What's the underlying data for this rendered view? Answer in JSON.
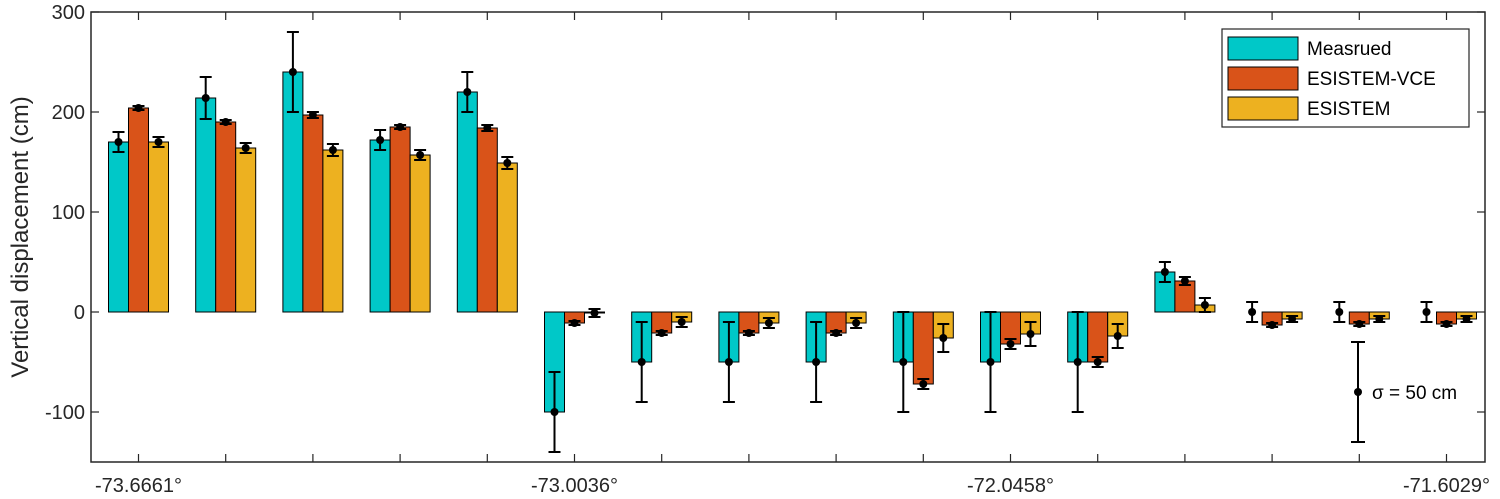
{
  "chart_data": {
    "type": "bar",
    "ylabel": "Vertical displacement (cm)",
    "ylim": [
      -150,
      300
    ],
    "yticks": [
      -100,
      0,
      100,
      200,
      300
    ],
    "xtick_labels": [
      {
        "group": 1,
        "label": "-73.6661°"
      },
      {
        "group": 6,
        "label": "-73.0036°"
      },
      {
        "group": 11,
        "label": "-72.0458°"
      },
      {
        "group": 16,
        "label": "-71.6029°"
      }
    ],
    "groups": 16,
    "series": [
      {
        "name": "Measrued",
        "color": "#00C8C8",
        "values": [
          170,
          214,
          240,
          172,
          220,
          -100,
          -50,
          -50,
          -50,
          -50,
          -50,
          -50,
          40,
          0,
          0,
          0
        ],
        "errors": [
          10,
          21,
          40,
          10,
          20,
          40,
          40,
          40,
          40,
          50,
          50,
          50,
          10,
          10,
          10,
          10
        ]
      },
      {
        "name": "ESISTEM-VCE",
        "color": "#D95319",
        "values": [
          204,
          190,
          197,
          185,
          184,
          -11,
          -21,
          -21,
          -21,
          -72,
          -32,
          -50,
          31,
          -13,
          -12,
          -12
        ],
        "errors": [
          2,
          2,
          3,
          2,
          3,
          2,
          2,
          2,
          2,
          5,
          5,
          5,
          4,
          2,
          2,
          2
        ]
      },
      {
        "name": "ESISTEM",
        "color": "#EDB120",
        "values": [
          170,
          164,
          162,
          157,
          149,
          -1,
          -10,
          -11,
          -11,
          -26,
          -22,
          -24,
          7,
          -7,
          -7,
          -7
        ],
        "errors": [
          5,
          5,
          6,
          5,
          6,
          4,
          5,
          5,
          5,
          14,
          12,
          12,
          7,
          3,
          3,
          3
        ]
      }
    ],
    "legend_position": "top-right",
    "annotation": {
      "label": "σ = 50 cm",
      "center": -80,
      "half_range": 50
    }
  }
}
